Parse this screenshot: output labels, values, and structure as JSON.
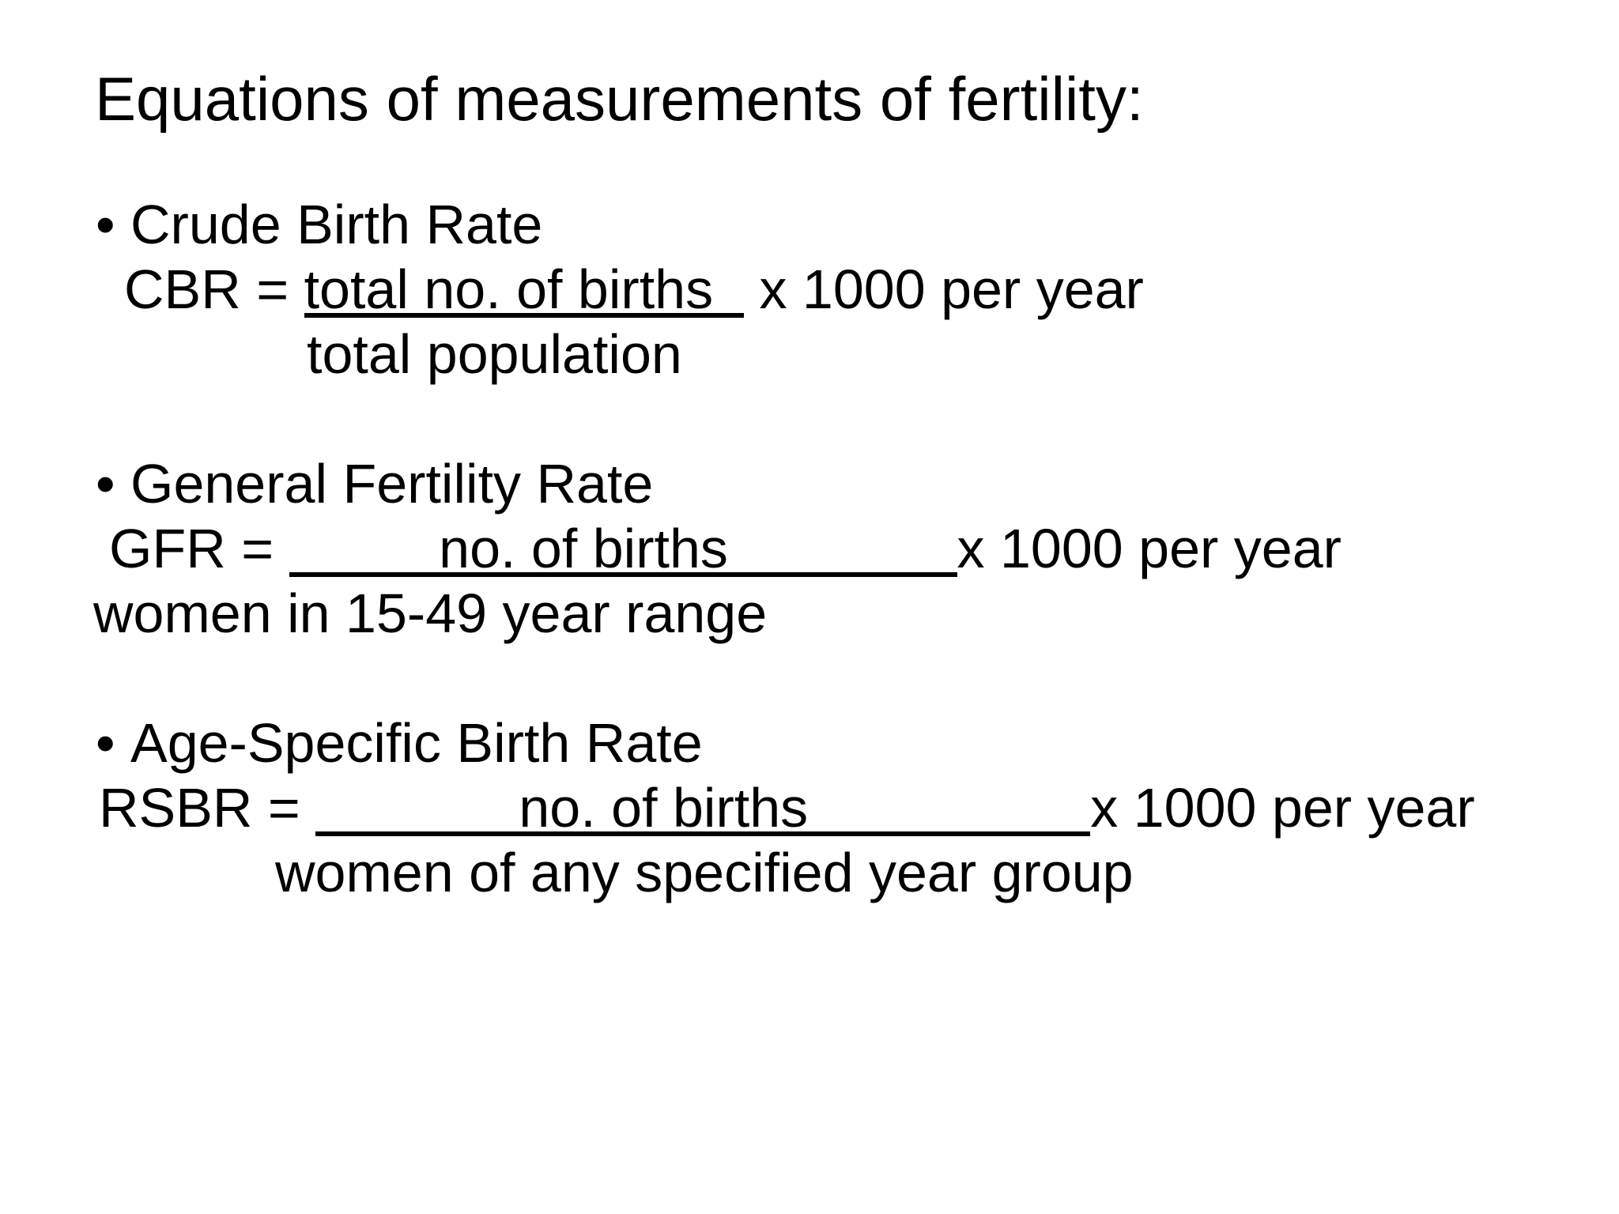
{
  "title": "Equations of measurements of fertility:",
  "bullet_glyph": "•",
  "colors": {
    "text": "#000000",
    "background": "#ffffff"
  },
  "sections": [
    {
      "heading": "Crude Birth Rate",
      "equation": {
        "lhs": "CBR = ",
        "numerator": "total no. of births  ",
        "rhs": " x 1000 per year"
      },
      "denominator": "total population"
    },
    {
      "heading": "General Fertility Rate",
      "equation": {
        "lhs": "GFR = ",
        "numerator": "no. of births",
        "rhs": "x 1000 per year"
      },
      "denominator": "women in 15-49 year range"
    },
    {
      "heading": "Age-Specific Birth Rate",
      "equation": {
        "lhs": "RSBR = ",
        "numerator": "no. of births",
        "rhs": "x 1000 per year"
      },
      "denominator": "women of any specified year group"
    }
  ]
}
